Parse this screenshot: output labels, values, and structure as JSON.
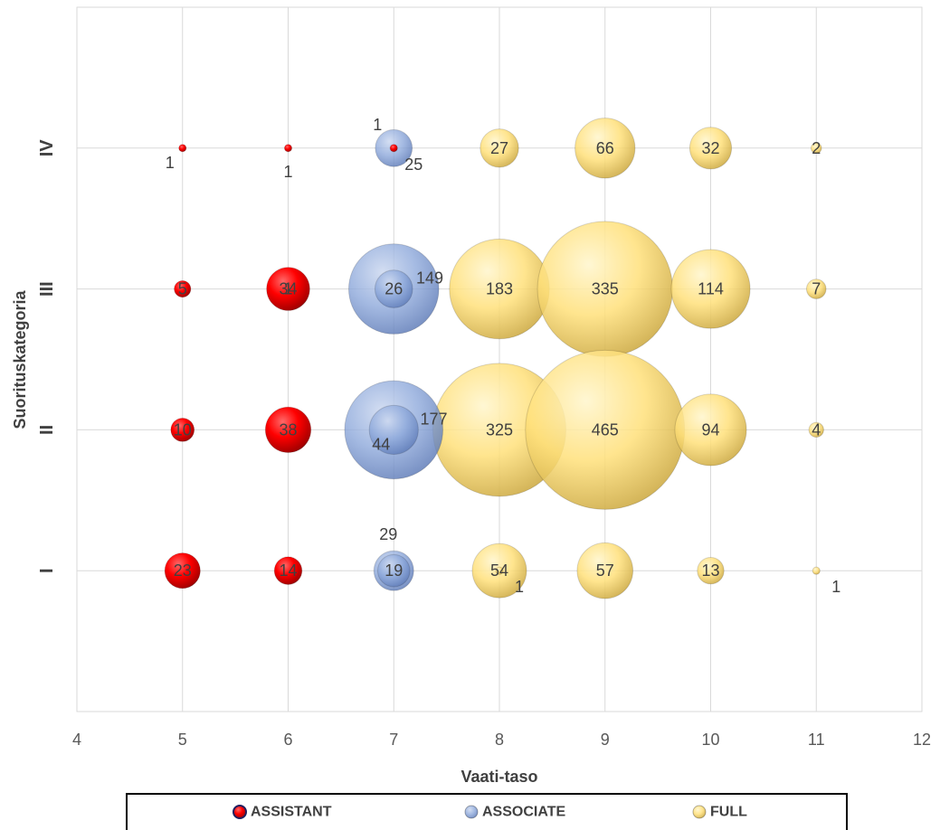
{
  "chart_data": {
    "type": "bubble",
    "xlabel": "Vaati-taso",
    "ylabel": "Suorituskategoria",
    "xlim": [
      4,
      12
    ],
    "xticks": [
      4,
      5,
      6,
      7,
      8,
      9,
      10,
      11,
      12
    ],
    "ylim": [
      0,
      5
    ],
    "ytick_values": [
      1,
      2,
      3,
      4
    ],
    "ytick_labels": [
      "I",
      "II",
      "III",
      "IV"
    ],
    "grid": true,
    "legend_position": "bottom",
    "series": [
      {
        "name": "ASSISTANT",
        "color": "#ff0000",
        "points": [
          {
            "x": 5,
            "y": 4,
            "size": 1,
            "label": "1"
          },
          {
            "x": 6,
            "y": 4,
            "size": 1,
            "label": "1"
          },
          {
            "x": 7,
            "y": 4,
            "size": 1,
            "label": "1"
          },
          {
            "x": 5,
            "y": 3,
            "size": 5,
            "label": "5"
          },
          {
            "x": 6,
            "y": 3,
            "size": 34,
            "label": "34"
          },
          {
            "x": 5,
            "y": 2,
            "size": 10,
            "label": "10"
          },
          {
            "x": 6,
            "y": 2,
            "size": 38,
            "label": "38"
          },
          {
            "x": 5,
            "y": 1,
            "size": 23,
            "label": "23"
          },
          {
            "x": 6,
            "y": 1,
            "size": 14,
            "label": "14"
          }
        ]
      },
      {
        "name": "ASSOCIATE",
        "color": "#8ea9db",
        "points": [
          {
            "x": 7,
            "y": 4,
            "size": 25,
            "label": "25"
          },
          {
            "x": 7,
            "y": 3,
            "size": 149,
            "label": "149"
          },
          {
            "x": 7,
            "y": 2,
            "size": 177,
            "label": "177"
          },
          {
            "x": 7,
            "y": 1,
            "size": 29,
            "label": "29"
          },
          {
            "x": 6,
            "y": 3,
            "size": 1,
            "label": "1"
          },
          {
            "x": 7,
            "y": 3,
            "size": 26,
            "label": "26"
          },
          {
            "x": 7,
            "y": 2,
            "size": 44,
            "label": "44"
          },
          {
            "x": 7,
            "y": 1,
            "size": 19,
            "label": "19"
          }
        ]
      },
      {
        "name": "FULL",
        "color": "#ffe07a",
        "points": [
          {
            "x": 8,
            "y": 4,
            "size": 27,
            "label": "27"
          },
          {
            "x": 9,
            "y": 4,
            "size": 66,
            "label": "66"
          },
          {
            "x": 10,
            "y": 4,
            "size": 32,
            "label": "32"
          },
          {
            "x": 11,
            "y": 4,
            "size": 2,
            "label": "2"
          },
          {
            "x": 8,
            "y": 3,
            "size": 183,
            "label": "183"
          },
          {
            "x": 9,
            "y": 3,
            "size": 335,
            "label": "335"
          },
          {
            "x": 10,
            "y": 3,
            "size": 114,
            "label": "114"
          },
          {
            "x": 11,
            "y": 3,
            "size": 7,
            "label": "7"
          },
          {
            "x": 8,
            "y": 2,
            "size": 325,
            "label": "325"
          },
          {
            "x": 9,
            "y": 2,
            "size": 465,
            "label": "465"
          },
          {
            "x": 10,
            "y": 2,
            "size": 94,
            "label": "94"
          },
          {
            "x": 11,
            "y": 2,
            "size": 4,
            "label": "4"
          },
          {
            "x": 8,
            "y": 1,
            "size": 54,
            "label": "54"
          },
          {
            "x": 9,
            "y": 1,
            "size": 57,
            "label": "57"
          },
          {
            "x": 10,
            "y": 1,
            "size": 13,
            "label": "13"
          },
          {
            "x": 11,
            "y": 1,
            "size": 1,
            "label": "1"
          },
          {
            "x": 8,
            "y": 1,
            "size": 1,
            "label": "1"
          }
        ]
      }
    ],
    "legend": [
      "ASSISTANT",
      "ASSOCIATE",
      "FULL"
    ]
  }
}
